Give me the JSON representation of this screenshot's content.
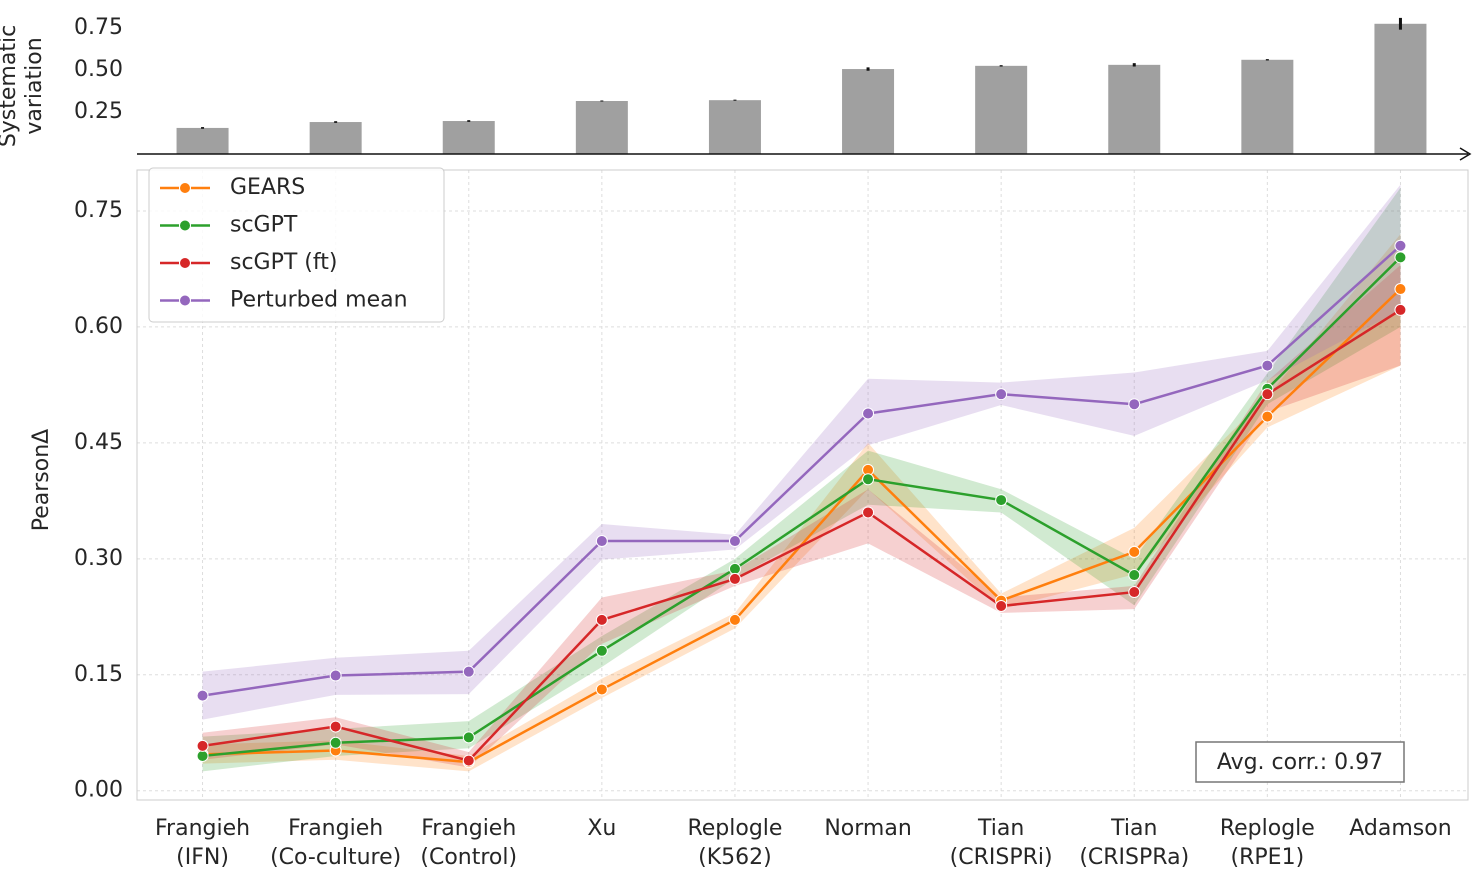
{
  "chart_data": [
    {
      "type": "bar",
      "ylabel": [
        "Systematic",
        "variation"
      ],
      "values": [
        0.155,
        0.19,
        0.196,
        0.315,
        0.32,
        0.505,
        0.524,
        0.53,
        0.56,
        0.774
      ],
      "errors": [
        0.005,
        0.005,
        0.005,
        0.003,
        0.003,
        0.01,
        0.004,
        0.01,
        0.004,
        0.035
      ],
      "color": "#a0a0a0",
      "ylim": [
        0,
        0.85
      ],
      "yticks": [
        {
          "value": 0.25,
          "label": "0.25"
        },
        {
          "value": 0.5,
          "label": "0.50"
        },
        {
          "value": 0.75,
          "label": "0.75"
        }
      ]
    },
    {
      "type": "line",
      "ylabel": "PearsonΔ",
      "categories": [
        [
          "Frangieh",
          "(IFN)"
        ],
        [
          "Frangieh",
          "(Co-culture)"
        ],
        [
          "Frangieh",
          "(Control)"
        ],
        [
          "Xu"
        ],
        [
          "Replogle",
          "(K562)"
        ],
        [
          "Norman"
        ],
        [
          "Tian",
          "(CRISPRi)"
        ],
        [
          "Tian",
          "(CRISPRa)"
        ],
        [
          "Replogle",
          "(RPE1)"
        ],
        [
          "Adamson"
        ]
      ],
      "series": [
        {
          "name": "GEARS",
          "color": "#ff7f0e",
          "values": [
            0.047,
            0.052,
            0.037,
            0.131,
            0.221,
            0.415,
            0.246,
            0.309,
            0.484,
            0.649
          ],
          "lower": [
            0.035,
            0.04,
            0.025,
            0.12,
            0.21,
            0.39,
            0.235,
            0.28,
            0.47,
            0.55
          ],
          "upper": [
            0.06,
            0.065,
            0.045,
            0.145,
            0.23,
            0.45,
            0.255,
            0.34,
            0.51,
            0.72
          ]
        },
        {
          "name": "scGPT",
          "color": "#2ca02c",
          "values": [
            0.045,
            0.062,
            0.069,
            0.181,
            0.287,
            0.403,
            0.376,
            0.279,
            0.52,
            0.69
          ],
          "lower": [
            0.025,
            0.045,
            0.055,
            0.16,
            0.275,
            0.37,
            0.36,
            0.24,
            0.5,
            0.6
          ],
          "upper": [
            0.07,
            0.08,
            0.09,
            0.2,
            0.3,
            0.44,
            0.39,
            0.3,
            0.54,
            0.78
          ]
        },
        {
          "name": "scGPT (ft)",
          "color": "#d62728",
          "values": [
            0.058,
            0.083,
            0.039,
            0.221,
            0.274,
            0.36,
            0.239,
            0.257,
            0.513,
            0.622
          ],
          "lower": [
            0.04,
            0.06,
            0.03,
            0.19,
            0.265,
            0.32,
            0.23,
            0.235,
            0.49,
            0.55
          ],
          "upper": [
            0.075,
            0.095,
            0.05,
            0.25,
            0.285,
            0.39,
            0.25,
            0.265,
            0.53,
            0.68
          ]
        },
        {
          "name": "Perturbed mean",
          "color": "#9467bd",
          "values": [
            0.123,
            0.149,
            0.154,
            0.323,
            0.323,
            0.488,
            0.513,
            0.5,
            0.55,
            0.705
          ],
          "lower": [
            0.092,
            0.124,
            0.125,
            0.299,
            0.312,
            0.447,
            0.499,
            0.459,
            0.531,
            0.622
          ],
          "upper": [
            0.154,
            0.172,
            0.181,
            0.345,
            0.331,
            0.533,
            0.528,
            0.541,
            0.569,
            0.784
          ]
        }
      ],
      "annotation": "Avg. corr.: 0.97",
      "ylim": [
        -0.012,
        0.803
      ],
      "yticks": [
        {
          "value": 0,
          "label": "0.00"
        },
        {
          "value": 0.15,
          "label": "0.15"
        },
        {
          "value": 0.3,
          "label": "0.30"
        },
        {
          "value": 0.45,
          "label": "0.45"
        },
        {
          "value": 0.6,
          "label": "0.60"
        },
        {
          "value": 0.75,
          "label": "0.75"
        }
      ],
      "grid": true,
      "legend": "upper left"
    }
  ]
}
